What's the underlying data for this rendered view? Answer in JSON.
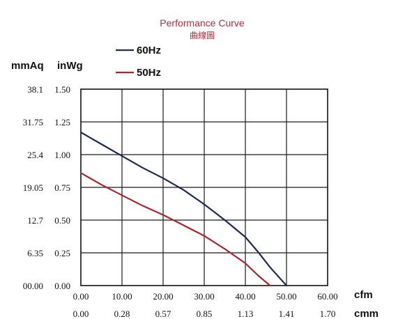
{
  "chart_data": {
    "type": "line",
    "title": "Performance Curve",
    "subtitle": "曲線圖",
    "x_units": [
      "cfm",
      "cmm"
    ],
    "y_units": [
      "mmAq",
      "inWg"
    ],
    "x_ticks_cfm": [
      "0.00",
      "10.00",
      "20.00",
      "30.00",
      "40.00",
      "50.00",
      "60.00"
    ],
    "x_ticks_cmm": [
      "0.00",
      "0.28",
      "0.57",
      "0.85",
      "1.13",
      "1.41",
      "1.70"
    ],
    "y_ticks_inwg": [
      "0.00",
      "0.25",
      "0.50",
      "0.75",
      "1.00",
      "1.25",
      "1.50"
    ],
    "y_ticks_mmaq": [
      "00.00",
      "6.35",
      "12.7",
      "19.05",
      "25.4",
      "31.75",
      "38.1"
    ],
    "xlim": [
      0,
      60
    ],
    "ylim": [
      0,
      1.5
    ],
    "grid": true,
    "legend_position": "top-left",
    "series": [
      {
        "name": "60Hz",
        "color": "#1c2a55",
        "x": [
          0,
          5,
          10,
          15,
          20,
          25,
          30,
          35,
          40,
          43,
          46,
          50
        ],
        "y": [
          1.17,
          1.08,
          0.99,
          0.9,
          0.82,
          0.73,
          0.62,
          0.5,
          0.37,
          0.26,
          0.14,
          0.0
        ]
      },
      {
        "name": "50Hz",
        "color": "#a8262a",
        "x": [
          0,
          5,
          10,
          15,
          20,
          25,
          30,
          35,
          40,
          43,
          46
        ],
        "y": [
          0.86,
          0.77,
          0.69,
          0.61,
          0.54,
          0.46,
          0.38,
          0.28,
          0.17,
          0.08,
          0.0
        ]
      }
    ]
  }
}
